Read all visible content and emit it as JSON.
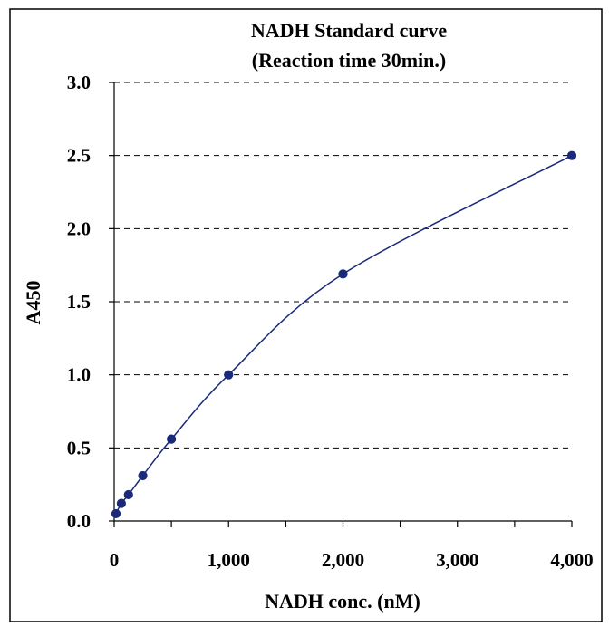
{
  "chart_data": {
    "type": "line",
    "title": "NADH Standard curve",
    "subtitle": "(Reaction time 30min.)",
    "xlabel": "NADH conc. (nM)",
    "ylabel": "A450",
    "xlim": [
      0,
      4000
    ],
    "ylim": [
      0,
      3.0
    ],
    "xticks": [
      0,
      1000,
      2000,
      3000,
      4000
    ],
    "xtick_labels": [
      "0",
      "1,000",
      "2,000",
      "3,000",
      "4,000"
    ],
    "yticks": [
      0,
      0.5,
      1.0,
      1.5,
      2.0,
      2.5,
      3.0
    ],
    "ytick_labels": [
      "0.0",
      "0.5",
      "1.0",
      "1.5",
      "2.0",
      "2.5",
      "3.0"
    ],
    "grid": "horizontal-dashed",
    "legend": "none",
    "series": [
      {
        "x": [
          15.6,
          62.5,
          125,
          250,
          500,
          1000,
          2000,
          4000
        ],
        "y": [
          0.05,
          0.12,
          0.18,
          0.31,
          0.56,
          1.0,
          1.69,
          2.5
        ],
        "color": "#1a2a7a"
      }
    ]
  }
}
